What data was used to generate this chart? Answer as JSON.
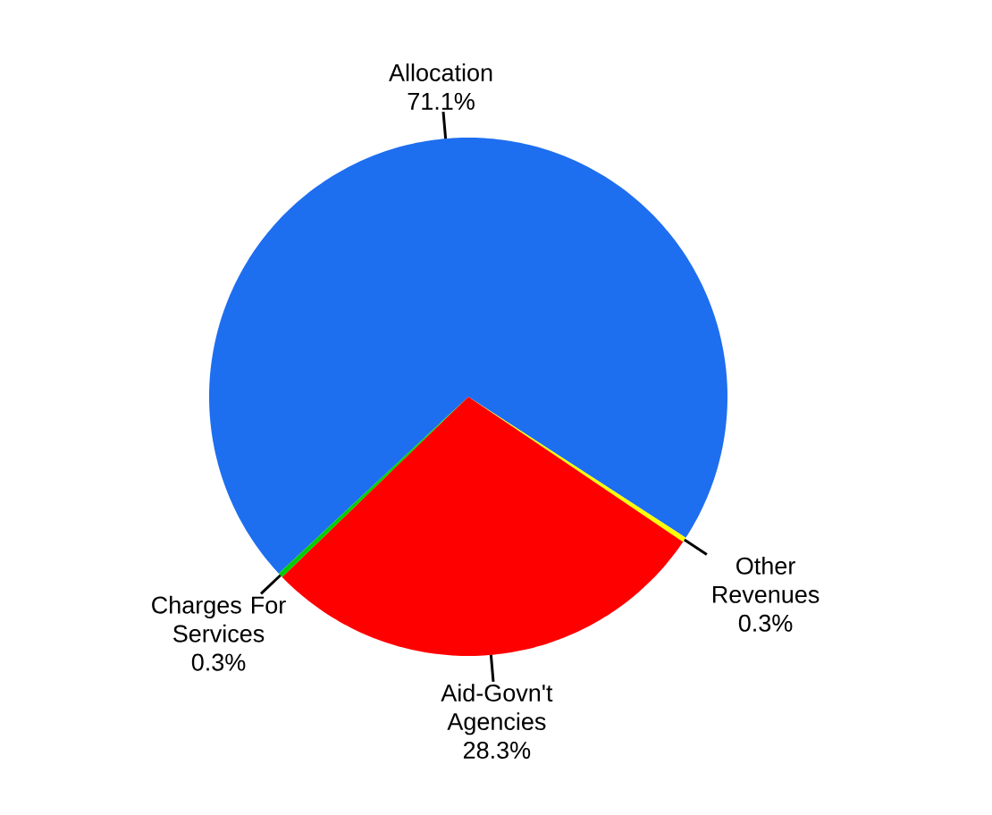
{
  "chart_data": {
    "type": "pie",
    "categories": [
      "Allocation",
      "Other Revenues",
      "Aid-Govn't Agencies",
      "Charges For Services"
    ],
    "values": [
      71.1,
      0.3,
      28.3,
      0.3
    ],
    "value_labels": [
      "71.1%",
      "0.3%",
      "28.3%",
      "0.3%"
    ],
    "colors": [
      "#1e6ef0",
      "#ffff00",
      "#ff0000",
      "#00cc00"
    ]
  }
}
